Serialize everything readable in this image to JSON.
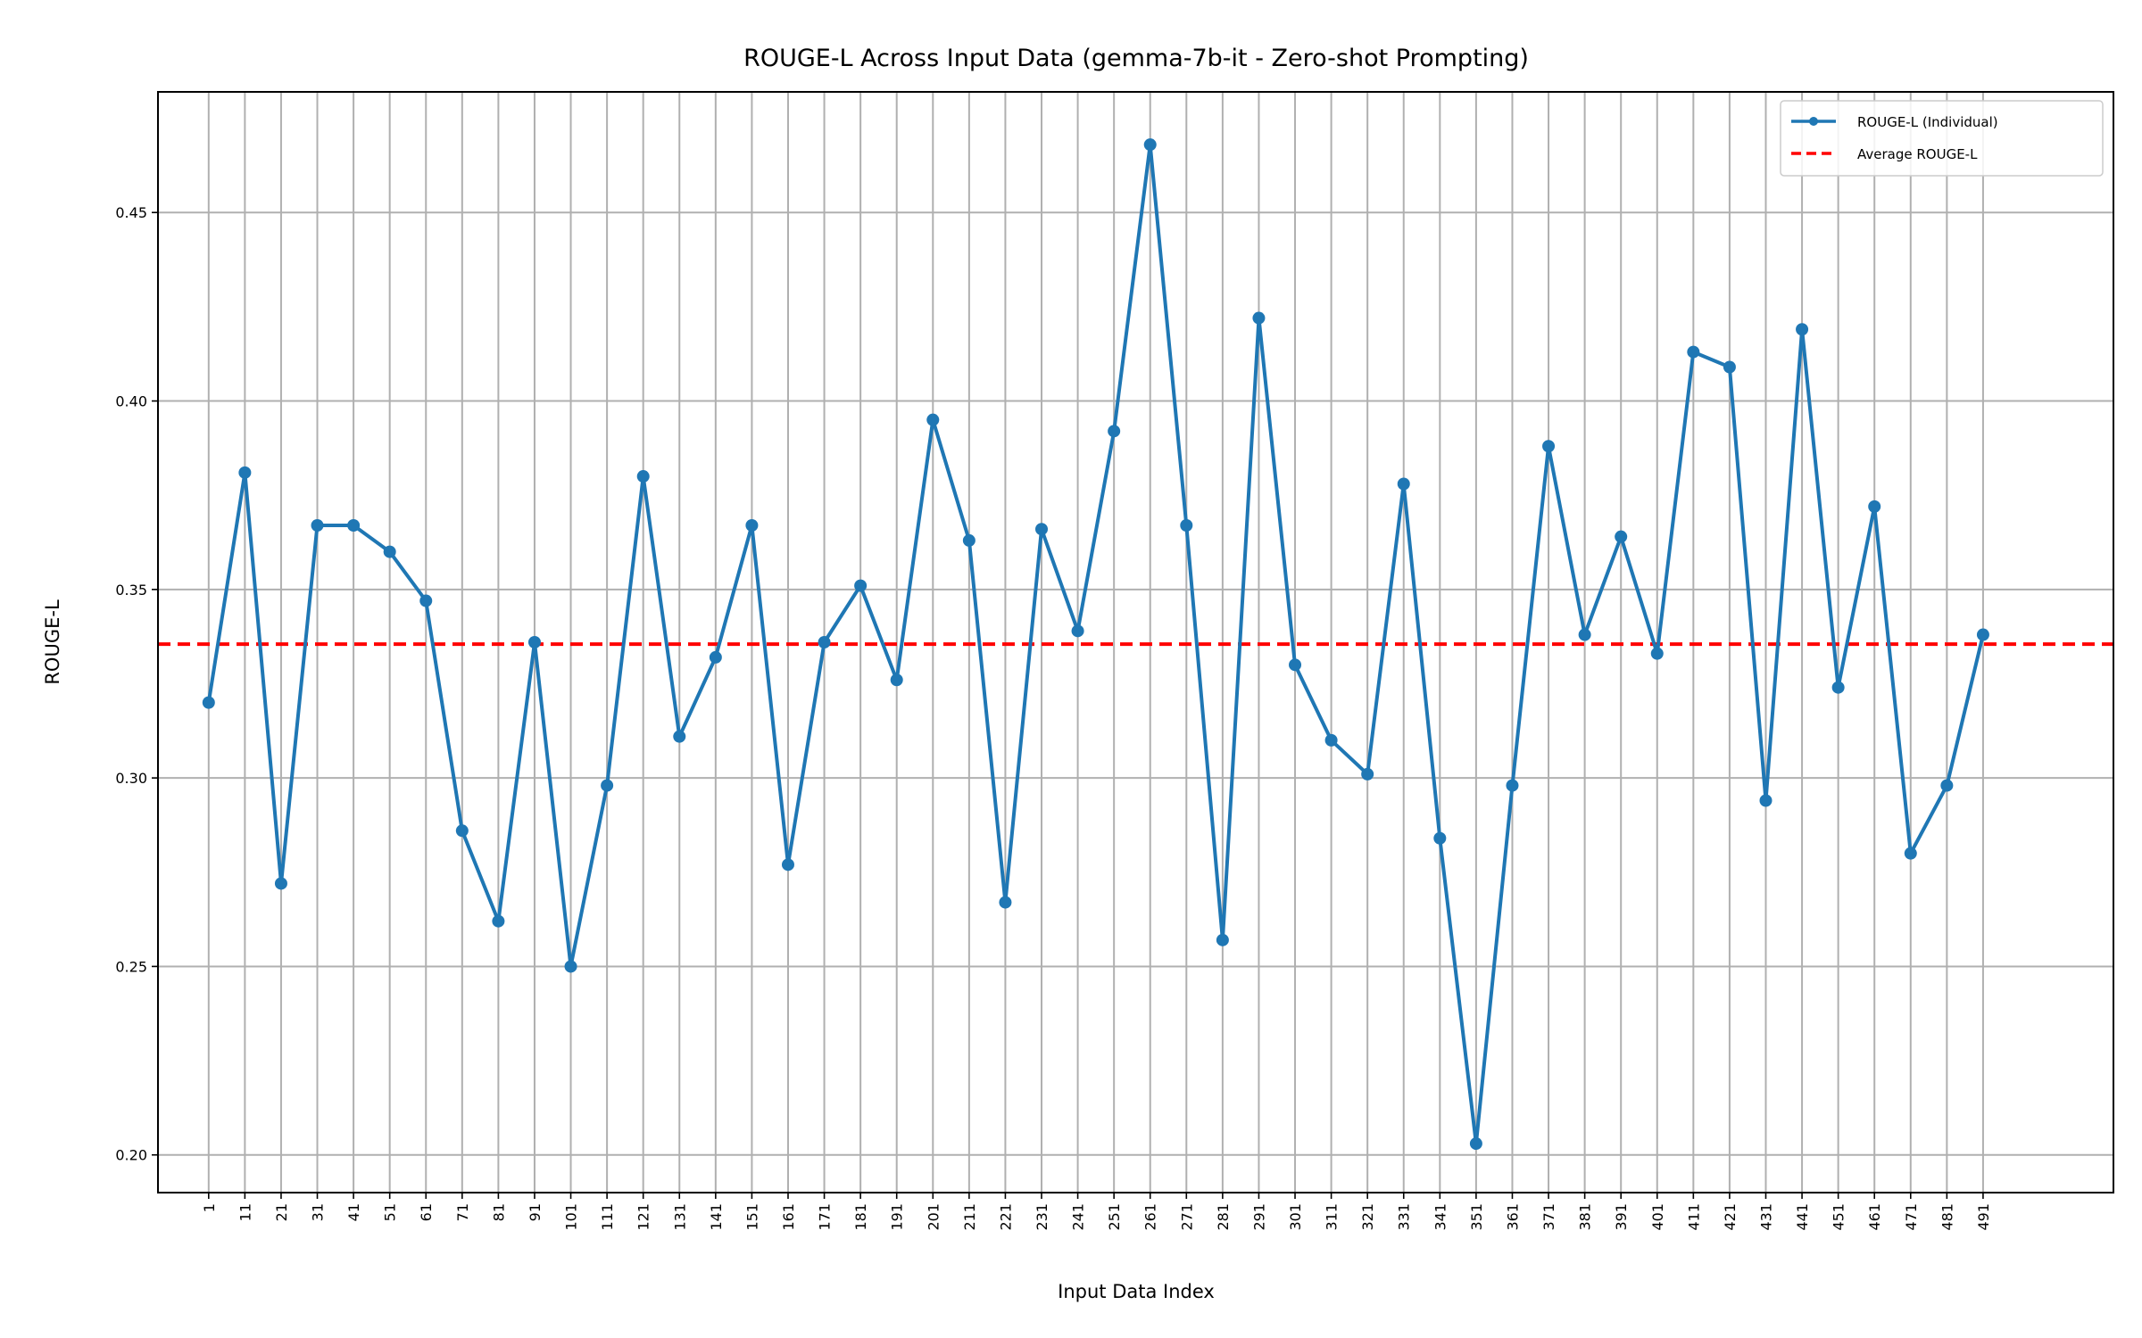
{
  "chart_data": {
    "type": "line",
    "title": "ROUGE-L Across Input Data (gemma-7b-it - Zero-shot Prompting)",
    "xlabel": "Input Data Index",
    "ylabel": "ROUGE-L",
    "x": [
      1,
      11,
      21,
      31,
      41,
      51,
      61,
      71,
      81,
      91,
      101,
      111,
      121,
      131,
      141,
      151,
      161,
      171,
      181,
      191,
      201,
      211,
      221,
      231,
      241,
      251,
      261,
      271,
      281,
      291,
      301,
      311,
      321,
      331,
      341,
      351,
      361,
      371,
      381,
      391,
      401,
      411,
      421,
      431,
      441,
      451,
      461,
      471,
      481,
      491
    ],
    "xtick_labels": [
      "1",
      "11",
      "21",
      "31",
      "41",
      "51",
      "61",
      "71",
      "81",
      "91",
      "101",
      "111",
      "121",
      "131",
      "141",
      "151",
      "161",
      "171",
      "181",
      "191",
      "201",
      "211",
      "221",
      "231",
      "241",
      "251",
      "261",
      "271",
      "281",
      "291",
      "301",
      "311",
      "321",
      "331",
      "341",
      "351",
      "361",
      "371",
      "381",
      "391",
      "401",
      "411",
      "421",
      "431",
      "441",
      "451",
      "461",
      "471",
      "481",
      "491"
    ],
    "yticks": [
      0.2,
      0.25,
      0.3,
      0.35,
      0.4,
      0.45
    ],
    "ytick_labels": [
      "0.20",
      "0.25",
      "0.30",
      "0.35",
      "0.40",
      "0.45"
    ],
    "xlim": [
      -13,
      527
    ],
    "ylim": [
      0.19,
      0.482
    ],
    "grid": true,
    "legend_position": "top-right",
    "series": [
      {
        "name": "ROUGE-L (Individual)",
        "color": "#1f77b4",
        "style": "solid-with-markers",
        "values": [
          0.32,
          0.381,
          0.272,
          0.367,
          0.367,
          0.36,
          0.347,
          0.286,
          0.262,
          0.336,
          0.25,
          0.298,
          0.38,
          0.311,
          0.332,
          0.367,
          0.277,
          0.336,
          0.351,
          0.326,
          0.395,
          0.363,
          0.267,
          0.366,
          0.339,
          0.392,
          0.468,
          0.367,
          0.257,
          0.422,
          0.33,
          0.31,
          0.301,
          0.378,
          0.284,
          0.203,
          0.298,
          0.388,
          0.338,
          0.364,
          0.333,
          0.413,
          0.409,
          0.294,
          0.419,
          0.324,
          0.372,
          0.28,
          0.298,
          0.338
        ]
      },
      {
        "name": "Average ROUGE-L",
        "color": "#ff0000",
        "style": "dashed",
        "value": 0.3355
      }
    ]
  }
}
